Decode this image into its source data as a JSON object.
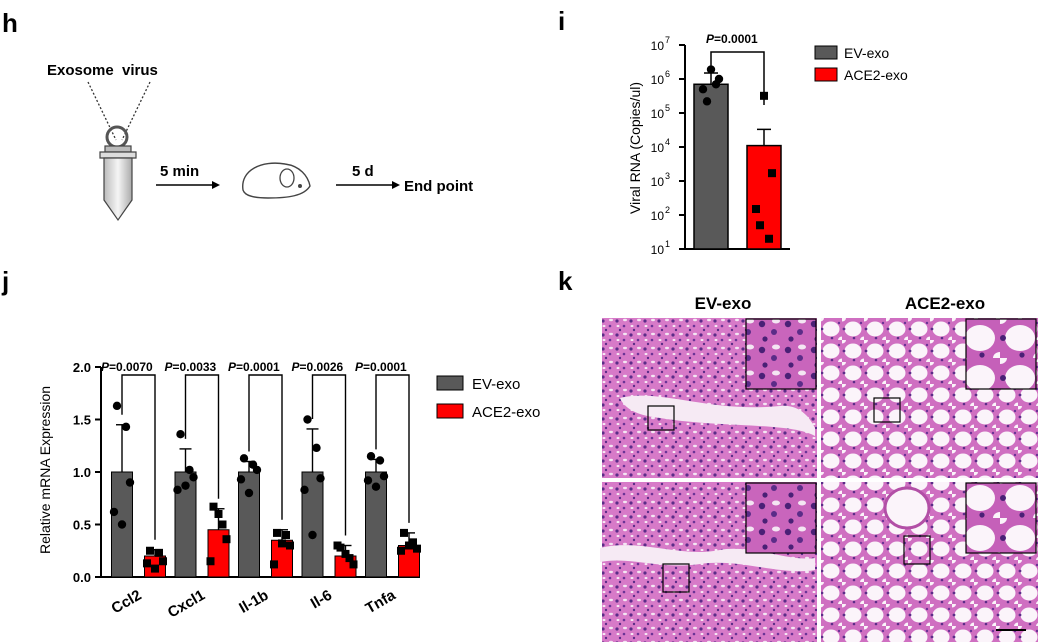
{
  "panels": {
    "h": "h",
    "i": "i",
    "j": "j",
    "k": "k"
  },
  "schematic": {
    "exosome": "Exosome",
    "virus": "virus",
    "step1": "5 min",
    "step2": "5 d",
    "end": "End point"
  },
  "colors": {
    "ev": "#595959",
    "ace2": "#ff0000"
  },
  "chart_data": [
    {
      "type": "bar",
      "panel": "i",
      "ylabel": "Viral RNA (Copies/ul)",
      "yscale": "log",
      "ylim": [
        10,
        10000000
      ],
      "ytick_labels": [
        {
          "base": "10",
          "exp": "1"
        },
        {
          "base": "10",
          "exp": "2"
        },
        {
          "base": "10",
          "exp": "3"
        },
        {
          "base": "10",
          "exp": "4"
        },
        {
          "base": "10",
          "exp": "5"
        },
        {
          "base": "10",
          "exp": "6"
        },
        {
          "base": "10",
          "exp": "7"
        }
      ],
      "legend": [
        "EV-exo",
        "ACE2-exo"
      ],
      "legend_position": "right",
      "pvalue": {
        "label": "P",
        "value": "=0.0001"
      },
      "series": [
        {
          "name": "EV-exo",
          "value": 700000,
          "err": 1500000,
          "points": [
            1900000,
            1000000,
            500000,
            220000,
            700000
          ]
        },
        {
          "name": "ACE2-exo",
          "value": 11000,
          "err": 33000,
          "points": [
            320000,
            1700,
            150,
            50,
            20
          ]
        }
      ]
    },
    {
      "type": "bar",
      "panel": "j",
      "ylabel": "Relative mRNA Expression",
      "ylim": [
        0,
        2.0
      ],
      "yticks": [
        "0.0",
        "0.5",
        "1.0",
        "1.5",
        "2.0"
      ],
      "categories": [
        "Ccl2",
        "Cxcl1",
        "Il-1b",
        "Il-6",
        "Tnfa"
      ],
      "legend": [
        "EV-exo",
        "ACE2-exo"
      ],
      "legend_position": "right",
      "pvalues": [
        {
          "label": "P",
          "value": "=0.0070"
        },
        {
          "label": "P",
          "value": "=0.0033"
        },
        {
          "label": "P",
          "value": "=0.0001"
        },
        {
          "label": "P",
          "value": "=0.0026"
        },
        {
          "label": "P",
          "value": "=0.0001"
        }
      ],
      "series": [
        {
          "name": "EV-exo",
          "values": [
            1.0,
            1.0,
            1.0,
            1.0,
            1.0
          ],
          "err": [
            0.45,
            0.22,
            0.1,
            0.41,
            0.12
          ],
          "points": [
            [
              1.63,
              1.43,
              0.9,
              0.62,
              0.5
            ],
            [
              1.36,
              1.02,
              0.95,
              0.83,
              0.87
            ],
            [
              1.13,
              1.07,
              1.02,
              0.93,
              0.8
            ],
            [
              1.5,
              1.23,
              0.94,
              0.83,
              0.4
            ],
            [
              1.15,
              1.11,
              0.96,
              0.92,
              0.86
            ]
          ]
        },
        {
          "name": "ACE2-exo",
          "values": [
            0.2,
            0.45,
            0.35,
            0.2,
            0.3
          ],
          "err": [
            0.06,
            0.2,
            0.1,
            0.1,
            0.12
          ],
          "points": [
            [
              0.25,
              0.23,
              0.15,
              0.13,
              0.08
            ],
            [
              0.67,
              0.5,
              0.36,
              0.15,
              0.6
            ],
            [
              0.42,
              0.4,
              0.3,
              0.12,
              0.32
            ],
            [
              0.28,
              0.18,
              0.12,
              0.3,
              0.22
            ],
            [
              0.42,
              0.33,
              0.27,
              0.25,
              0.3
            ]
          ]
        }
      ]
    }
  ],
  "histology": {
    "col1": "EV-exo",
    "col2": "ACE2-exo"
  }
}
